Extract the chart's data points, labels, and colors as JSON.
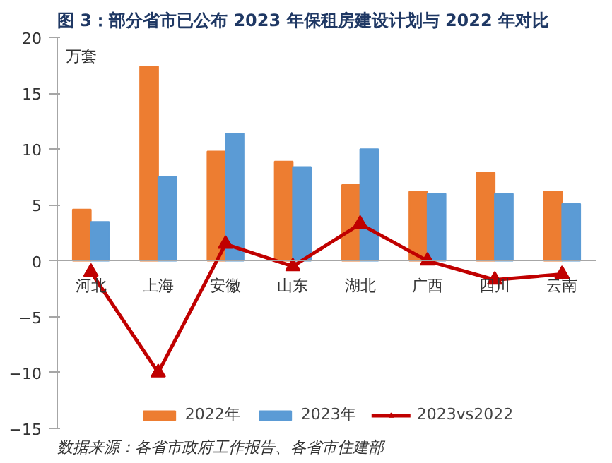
{
  "chart_data": {
    "type": "bar",
    "title": "图 3：部分省市已公布 2023 年保租房建设计划与 2022 年对比",
    "ylabel": "万套",
    "categories": [
      "河北",
      "上海",
      "安徽",
      "山东",
      "湖北",
      "广西",
      "四川",
      "云南"
    ],
    "series": [
      {
        "name": "2022年",
        "color": "#ed7d31",
        "values": [
          4.6,
          17.4,
          9.8,
          8.9,
          6.8,
          6.2,
          7.9,
          6.2
        ]
      },
      {
        "name": "2023年",
        "color": "#5b9bd5",
        "values": [
          3.5,
          7.5,
          11.4,
          8.4,
          10.0,
          6.0,
          6.0,
          5.1
        ]
      },
      {
        "name": "2023vs2022",
        "type": "line",
        "marker": "triangle",
        "color": "#c00000",
        "values": [
          -1.0,
          -10.0,
          1.5,
          -0.5,
          3.3,
          0.0,
          -1.7,
          -1.2
        ]
      }
    ],
    "ylim": [
      -15,
      20
    ],
    "yticks": [
      -15,
      -10,
      -5,
      0,
      5,
      10,
      15,
      20
    ],
    "grid": false,
    "legend": "bottom",
    "annotations": [
      "数据来源：各省市政府工作报告、各省市住建部"
    ]
  }
}
